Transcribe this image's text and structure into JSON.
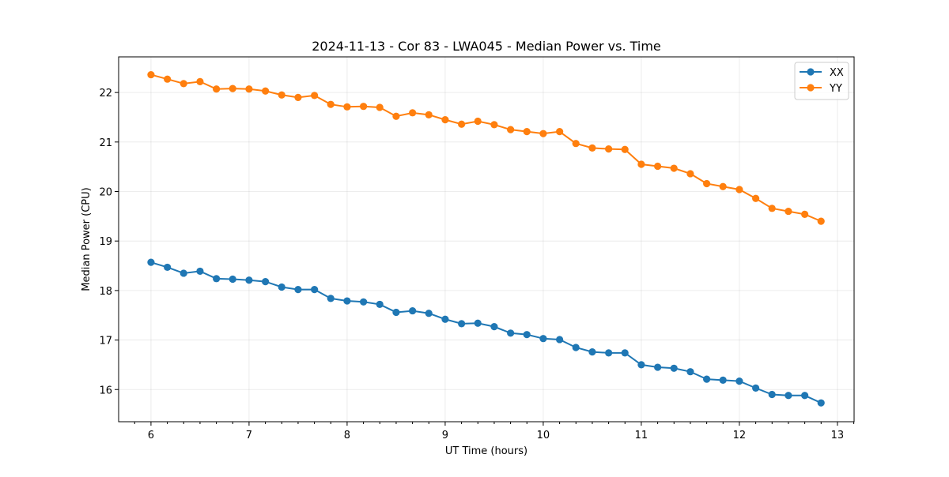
{
  "chart_data": {
    "type": "line",
    "title": "2024-11-13 - Cor 83 - LWA045 - Median Power vs. Time",
    "xlabel": "UT Time (hours)",
    "ylabel": "Median Power (CPU)",
    "xlim": [
      5.67,
      13.17
    ],
    "ylim": [
      15.35,
      22.72
    ],
    "xticks": [
      6,
      7,
      8,
      9,
      10,
      11,
      12,
      13
    ],
    "xtick_labels": [
      "6",
      "7",
      "8",
      "9",
      "10",
      "11",
      "12",
      "13"
    ],
    "x_minor_step": 0.16667,
    "yticks": [
      16,
      17,
      18,
      19,
      20,
      21,
      22
    ],
    "ytick_labels": [
      "16",
      "17",
      "18",
      "19",
      "20",
      "21",
      "22"
    ],
    "grid": true,
    "legend_position": "upper-right",
    "x": [
      6.0,
      6.167,
      6.333,
      6.5,
      6.667,
      6.833,
      7.0,
      7.167,
      7.333,
      7.5,
      7.667,
      7.833,
      8.0,
      8.167,
      8.333,
      8.5,
      8.667,
      8.833,
      9.0,
      9.167,
      9.333,
      9.5,
      9.667,
      9.833,
      10.0,
      10.167,
      10.333,
      10.5,
      10.667,
      10.833,
      11.0,
      11.167,
      11.333,
      11.5,
      11.667,
      11.833,
      12.0,
      12.167,
      12.333,
      12.5,
      12.667,
      12.833
    ],
    "series": [
      {
        "name": "XX",
        "color": "#1f77b4",
        "values": [
          18.57,
          18.47,
          18.35,
          18.39,
          18.24,
          18.23,
          18.21,
          18.18,
          18.07,
          18.02,
          18.02,
          17.84,
          17.79,
          17.77,
          17.72,
          17.56,
          17.59,
          17.54,
          17.42,
          17.33,
          17.34,
          17.27,
          17.14,
          17.11,
          17.03,
          17.01,
          16.85,
          16.76,
          16.74,
          16.74,
          16.5,
          16.45,
          16.43,
          16.36,
          16.21,
          16.19,
          16.17,
          16.03,
          15.9,
          15.88,
          15.88,
          15.73
        ]
      },
      {
        "name": "YY",
        "color": "#ff7f0e",
        "values": [
          22.36,
          22.27,
          22.18,
          22.22,
          22.07,
          22.08,
          22.07,
          22.03,
          21.95,
          21.9,
          21.94,
          21.76,
          21.71,
          21.72,
          21.7,
          21.52,
          21.59,
          21.55,
          21.45,
          21.36,
          21.42,
          21.35,
          21.25,
          21.21,
          21.17,
          21.21,
          20.97,
          20.88,
          20.86,
          20.85,
          20.55,
          20.51,
          20.47,
          20.36,
          20.16,
          20.1,
          20.04,
          19.86,
          19.66,
          19.6,
          19.54,
          19.4
        ]
      }
    ]
  }
}
